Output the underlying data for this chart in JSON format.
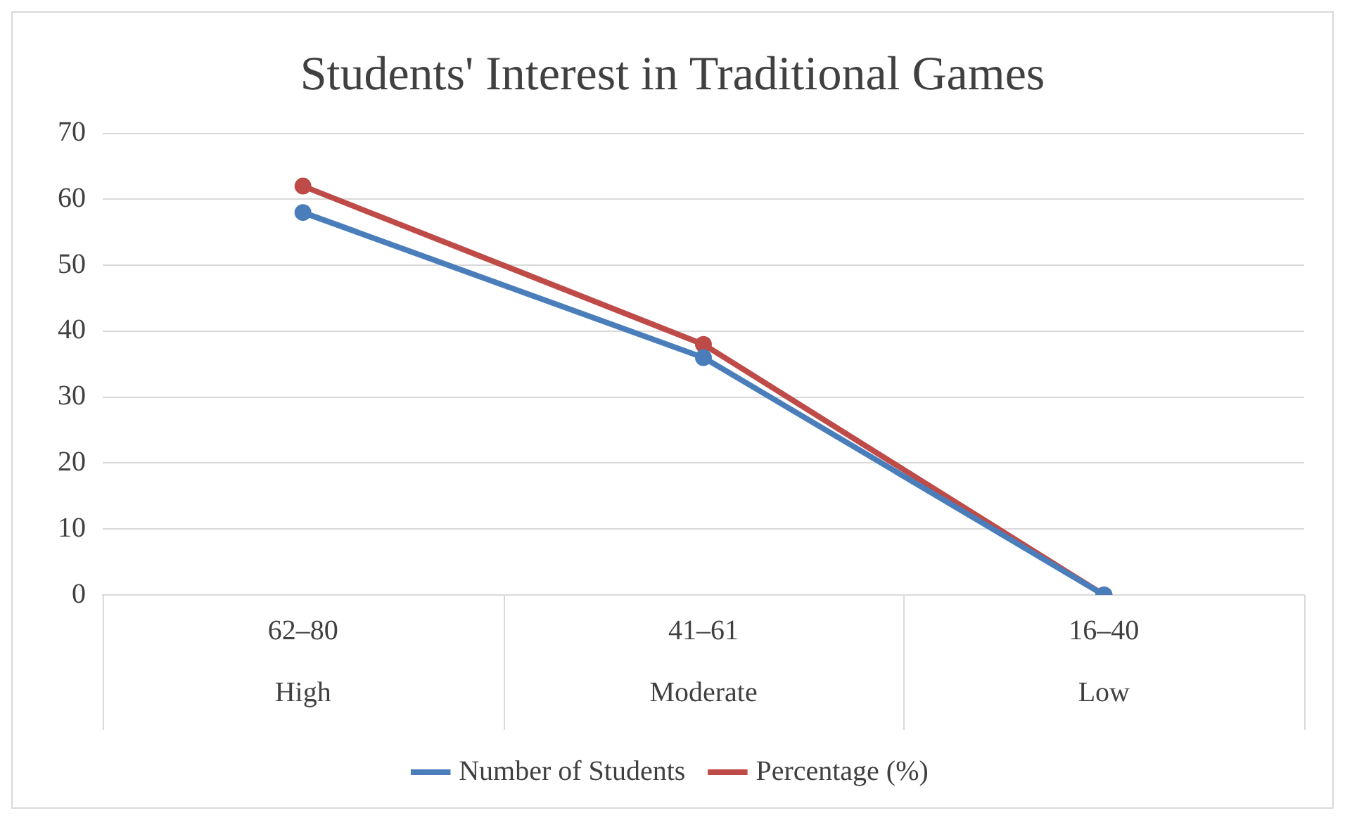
{
  "chart_data": {
    "type": "line",
    "title": "Students' Interest in Traditional Games",
    "categories": [
      "62–80\nHigh",
      "41–61\nModerate",
      "16–40\nLow"
    ],
    "series": [
      {
        "name": "Number of Students",
        "color": "#4a7ebb",
        "values": [
          58,
          36,
          0
        ]
      },
      {
        "name": "Percentage (%)",
        "color": "#be4b48",
        "values": [
          62,
          38,
          0
        ]
      }
    ],
    "ylim": [
      0,
      70
    ],
    "yticks": [
      0,
      10,
      20,
      30,
      40,
      50,
      60,
      70
    ],
    "grid": "y",
    "legend": "bottom",
    "marker": "circle",
    "line_style": "solid"
  }
}
